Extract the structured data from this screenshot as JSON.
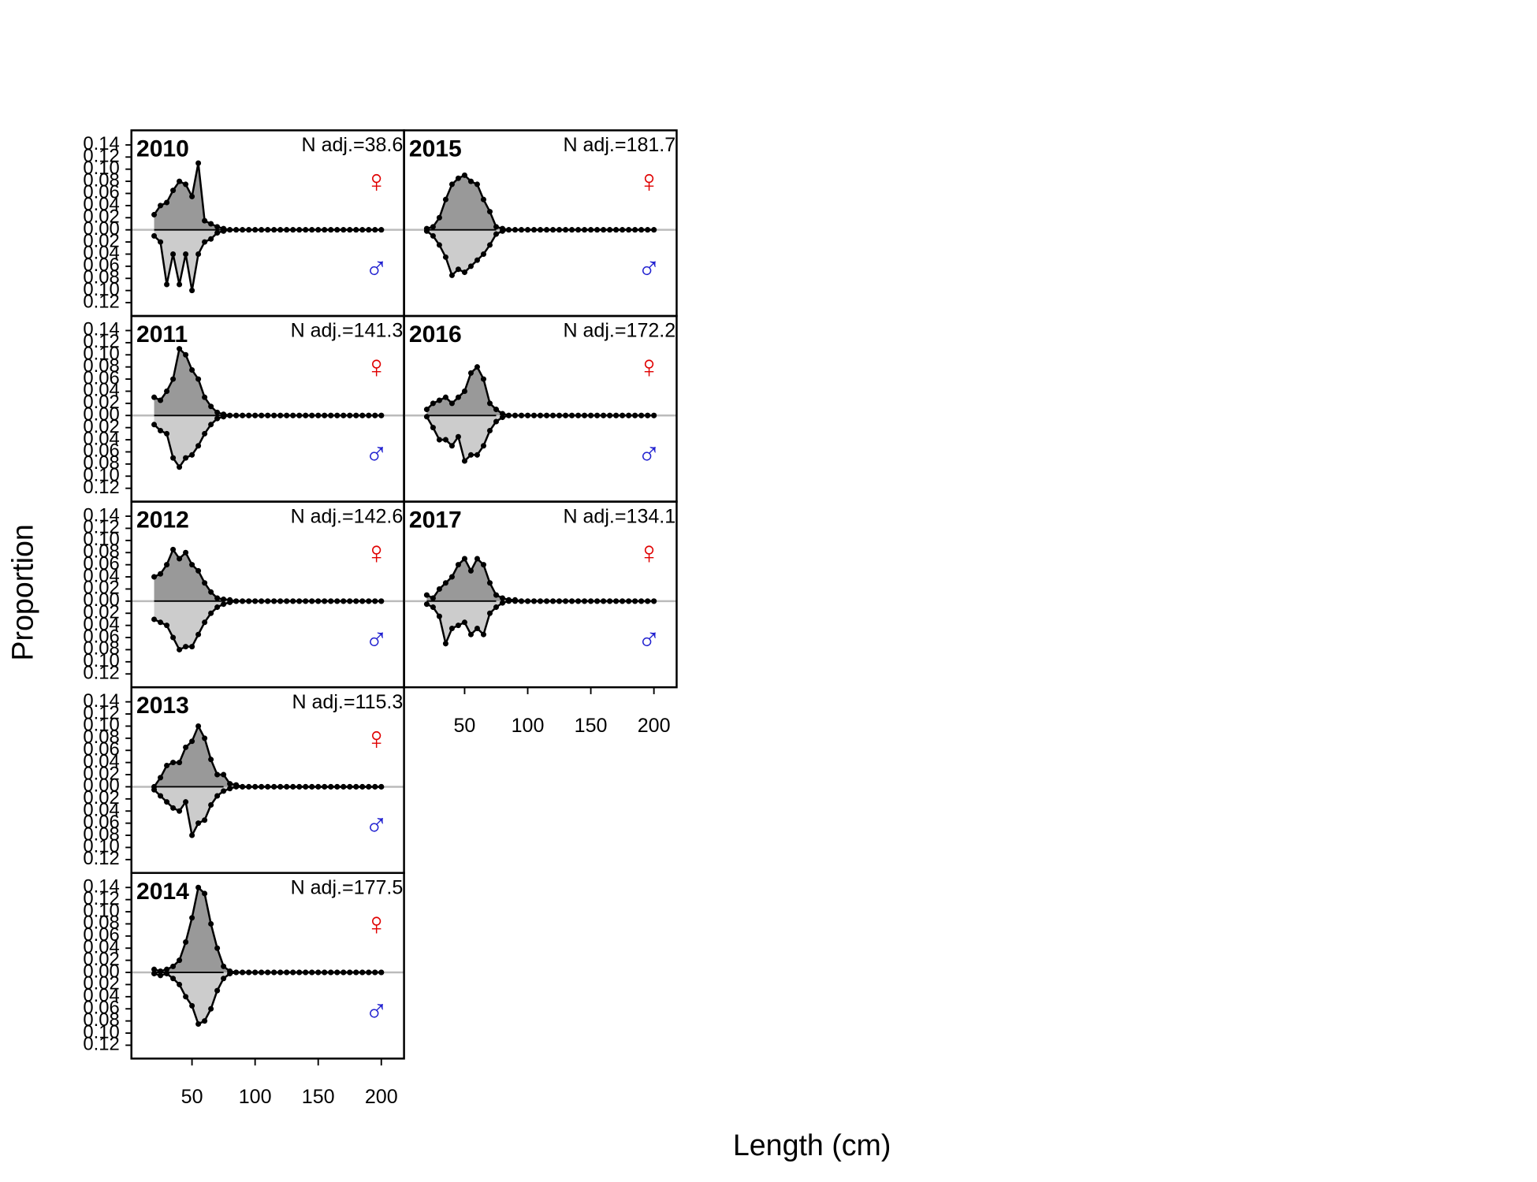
{
  "y_label": "Proportion",
  "x_label": "Length (cm)",
  "chart_data": {
    "type": "area",
    "x": [
      20,
      25,
      30,
      35,
      40,
      45,
      50,
      55,
      60,
      65,
      70,
      75,
      80,
      85,
      90,
      95,
      100,
      105,
      110,
      115,
      120,
      125,
      130,
      135,
      140,
      145,
      150,
      155,
      160,
      165,
      170,
      175,
      180,
      185,
      190,
      195,
      200
    ],
    "xlim": [
      2,
      218
    ],
    "ylim": [
      -0.142,
      0.164
    ],
    "xticks": [
      50,
      100,
      150,
      200
    ],
    "yticks": [
      {
        "value": 0.14,
        "label": "0.14"
      },
      {
        "value": 0.12,
        "label": "0.12"
      },
      {
        "value": 0.1,
        "label": "0.10"
      },
      {
        "value": 0.08,
        "label": "0.08"
      },
      {
        "value": 0.06,
        "label": "0.06"
      },
      {
        "value": 0.04,
        "label": "0.04"
      },
      {
        "value": 0.02,
        "label": "0.02"
      },
      {
        "value": 0,
        "label": "0.00"
      },
      {
        "value": -0.02,
        "label": "0.02"
      },
      {
        "value": -0.04,
        "label": "0.04"
      },
      {
        "value": -0.06,
        "label": "0.06"
      },
      {
        "value": -0.08,
        "label": "0.08"
      },
      {
        "value": -0.1,
        "label": "0.10"
      },
      {
        "value": -0.12,
        "label": "0.12"
      }
    ],
    "panels": [
      {
        "title": "2010",
        "annotation": "N adj.=38.6",
        "series": [
          {
            "name": "♀",
            "color": "#e00000",
            "fill": "#999999",
            "values": [
              0.025,
              0.04,
              0.045,
              0.065,
              0.08,
              0.075,
              0.055,
              0.11,
              0.015,
              0.01,
              0.005,
              0.002,
              0,
              0,
              0,
              0,
              0,
              0,
              0,
              0,
              0,
              0,
              0,
              0,
              0,
              0,
              0,
              0,
              0,
              0,
              0,
              0,
              0,
              0,
              0,
              0,
              0
            ]
          },
          {
            "name": "♂",
            "color": "#2020d0",
            "fill": "#cccccc",
            "mirror": true,
            "values": [
              0.01,
              0.02,
              0.09,
              0.04,
              0.09,
              0.04,
              0.1,
              0.04,
              0.02,
              0.015,
              0.005,
              0.002,
              0,
              0,
              0,
              0,
              0,
              0,
              0,
              0,
              0,
              0,
              0,
              0,
              0,
              0,
              0,
              0,
              0,
              0,
              0,
              0,
              0,
              0,
              0,
              0,
              0
            ]
          }
        ]
      },
      {
        "title": "2011",
        "annotation": "N adj.=141.3",
        "series": [
          {
            "name": "♀",
            "color": "#e00000",
            "fill": "#999999",
            "values": [
              0.03,
              0.025,
              0.04,
              0.06,
              0.11,
              0.1,
              0.075,
              0.06,
              0.03,
              0.015,
              0.005,
              0.002,
              0,
              0,
              0,
              0,
              0,
              0,
              0,
              0,
              0,
              0,
              0,
              0,
              0,
              0,
              0,
              0,
              0,
              0,
              0,
              0,
              0,
              0,
              0,
              0,
              0
            ]
          },
          {
            "name": "♂",
            "color": "#2020d0",
            "fill": "#cccccc",
            "mirror": true,
            "values": [
              0.015,
              0.025,
              0.03,
              0.07,
              0.085,
              0.07,
              0.065,
              0.05,
              0.03,
              0.015,
              0.005,
              0.002,
              0,
              0,
              0,
              0,
              0,
              0,
              0,
              0,
              0,
              0,
              0,
              0,
              0,
              0,
              0,
              0,
              0,
              0,
              0,
              0,
              0,
              0,
              0,
              0,
              0
            ]
          }
        ]
      },
      {
        "title": "2012",
        "annotation": "N adj.=142.6",
        "series": [
          {
            "name": "♀",
            "color": "#e00000",
            "fill": "#999999",
            "values": [
              0.04,
              0.045,
              0.06,
              0.085,
              0.07,
              0.08,
              0.06,
              0.05,
              0.03,
              0.015,
              0.005,
              0.003,
              0.002,
              0,
              0,
              0,
              0,
              0,
              0,
              0,
              0,
              0,
              0,
              0,
              0,
              0,
              0,
              0,
              0,
              0,
              0,
              0,
              0,
              0,
              0,
              0,
              0
            ]
          },
          {
            "name": "♂",
            "color": "#2020d0",
            "fill": "#cccccc",
            "mirror": true,
            "values": [
              0.03,
              0.035,
              0.04,
              0.06,
              0.08,
              0.075,
              0.075,
              0.055,
              0.035,
              0.02,
              0.01,
              0.005,
              0.002,
              0,
              0,
              0,
              0,
              0,
              0,
              0,
              0,
              0,
              0,
              0,
              0,
              0,
              0,
              0,
              0,
              0,
              0,
              0,
              0,
              0,
              0,
              0,
              0
            ]
          }
        ]
      },
      {
        "title": "2013",
        "annotation": "N adj.=115.3",
        "series": [
          {
            "name": "♀",
            "color": "#e00000",
            "fill": "#999999",
            "values": [
              0,
              0.015,
              0.035,
              0.04,
              0.04,
              0.065,
              0.075,
              0.1,
              0.08,
              0.045,
              0.02,
              0.02,
              0.005,
              0.003,
              0,
              0,
              0,
              0,
              0,
              0,
              0,
              0,
              0,
              0,
              0,
              0,
              0,
              0,
              0,
              0,
              0,
              0,
              0,
              0,
              0,
              0,
              0
            ]
          },
          {
            "name": "♂",
            "color": "#2020d0",
            "fill": "#cccccc",
            "mirror": true,
            "values": [
              0.005,
              0.015,
              0.025,
              0.035,
              0.04,
              0.025,
              0.08,
              0.06,
              0.055,
              0.03,
              0.015,
              0.007,
              0.003,
              0,
              0,
              0,
              0,
              0,
              0,
              0,
              0,
              0,
              0,
              0,
              0,
              0,
              0,
              0,
              0,
              0,
              0,
              0,
              0,
              0,
              0,
              0,
              0
            ]
          }
        ]
      },
      {
        "title": "2014",
        "annotation": "N adj.=177.5",
        "series": [
          {
            "name": "♀",
            "color": "#e00000",
            "fill": "#999999",
            "values": [
              0.005,
              0.002,
              0.005,
              0.01,
              0.02,
              0.05,
              0.09,
              0.14,
              0.13,
              0.08,
              0.04,
              0.01,
              0.002,
              0,
              0,
              0,
              0,
              0,
              0,
              0,
              0,
              0,
              0,
              0,
              0,
              0,
              0,
              0,
              0,
              0,
              0,
              0,
              0,
              0,
              0,
              0,
              0
            ]
          },
          {
            "name": "♂",
            "color": "#2020d0",
            "fill": "#cccccc",
            "mirror": true,
            "values": [
              0.002,
              0.005,
              0.002,
              0.01,
              0.02,
              0.04,
              0.055,
              0.085,
              0.08,
              0.06,
              0.03,
              0.01,
              0.002,
              0,
              0,
              0,
              0,
              0,
              0,
              0,
              0,
              0,
              0,
              0,
              0,
              0,
              0,
              0,
              0,
              0,
              0,
              0,
              0,
              0,
              0,
              0,
              0
            ]
          }
        ]
      },
      {
        "title": "2015",
        "annotation": "N adj.=181.7",
        "series": [
          {
            "name": "♀",
            "color": "#e00000",
            "fill": "#999999",
            "values": [
              0.002,
              0.005,
              0.02,
              0.05,
              0.075,
              0.085,
              0.09,
              0.08,
              0.075,
              0.05,
              0.03,
              0.005,
              0.002,
              0,
              0,
              0,
              0,
              0,
              0,
              0,
              0,
              0,
              0,
              0,
              0,
              0,
              0,
              0,
              0,
              0,
              0,
              0,
              0,
              0,
              0,
              0,
              0
            ]
          },
          {
            "name": "♂",
            "color": "#2020d0",
            "fill": "#cccccc",
            "mirror": true,
            "values": [
              0.002,
              0.01,
              0.025,
              0.045,
              0.075,
              0.065,
              0.07,
              0.06,
              0.05,
              0.04,
              0.025,
              0.007,
              0.002,
              0,
              0,
              0,
              0,
              0,
              0,
              0,
              0,
              0,
              0,
              0,
              0,
              0,
              0,
              0,
              0,
              0,
              0,
              0,
              0,
              0,
              0,
              0,
              0
            ]
          }
        ]
      },
      {
        "title": "2016",
        "annotation": "N adj.=172.2",
        "series": [
          {
            "name": "♀",
            "color": "#e00000",
            "fill": "#999999",
            "values": [
              0.01,
              0.02,
              0.025,
              0.03,
              0.02,
              0.03,
              0.04,
              0.07,
              0.08,
              0.06,
              0.02,
              0.01,
              0.003,
              0,
              0,
              0,
              0,
              0,
              0,
              0,
              0,
              0,
              0,
              0,
              0,
              0,
              0,
              0,
              0,
              0,
              0,
              0,
              0,
              0,
              0,
              0,
              0
            ]
          },
          {
            "name": "♂",
            "color": "#2020d0",
            "fill": "#cccccc",
            "mirror": true,
            "values": [
              0.002,
              0.02,
              0.04,
              0.04,
              0.05,
              0.035,
              0.075,
              0.065,
              0.065,
              0.05,
              0.025,
              0.01,
              0.003,
              0,
              0,
              0,
              0,
              0,
              0,
              0,
              0,
              0,
              0,
              0,
              0,
              0,
              0,
              0,
              0,
              0,
              0,
              0,
              0,
              0,
              0,
              0,
              0
            ]
          }
        ]
      },
      {
        "title": "2017",
        "annotation": "N adj.=134.1",
        "series": [
          {
            "name": "♀",
            "color": "#e00000",
            "fill": "#999999",
            "values": [
              0.01,
              0.005,
              0.02,
              0.03,
              0.04,
              0.06,
              0.07,
              0.05,
              0.07,
              0.06,
              0.03,
              0.01,
              0.005,
              0.002,
              0.002,
              0,
              0,
              0,
              0,
              0,
              0,
              0,
              0,
              0,
              0,
              0,
              0,
              0,
              0,
              0,
              0,
              0,
              0,
              0,
              0,
              0,
              0
            ]
          },
          {
            "name": "♂",
            "color": "#2020d0",
            "fill": "#cccccc",
            "mirror": true,
            "values": [
              0.005,
              0.01,
              0.025,
              0.07,
              0.045,
              0.04,
              0.035,
              0.055,
              0.045,
              0.055,
              0.02,
              0.01,
              0.003,
              0,
              0,
              0,
              0,
              0,
              0,
              0,
              0,
              0,
              0,
              0,
              0,
              0,
              0,
              0,
              0,
              0,
              0,
              0,
              0,
              0,
              0,
              0,
              0
            ]
          }
        ]
      }
    ]
  }
}
